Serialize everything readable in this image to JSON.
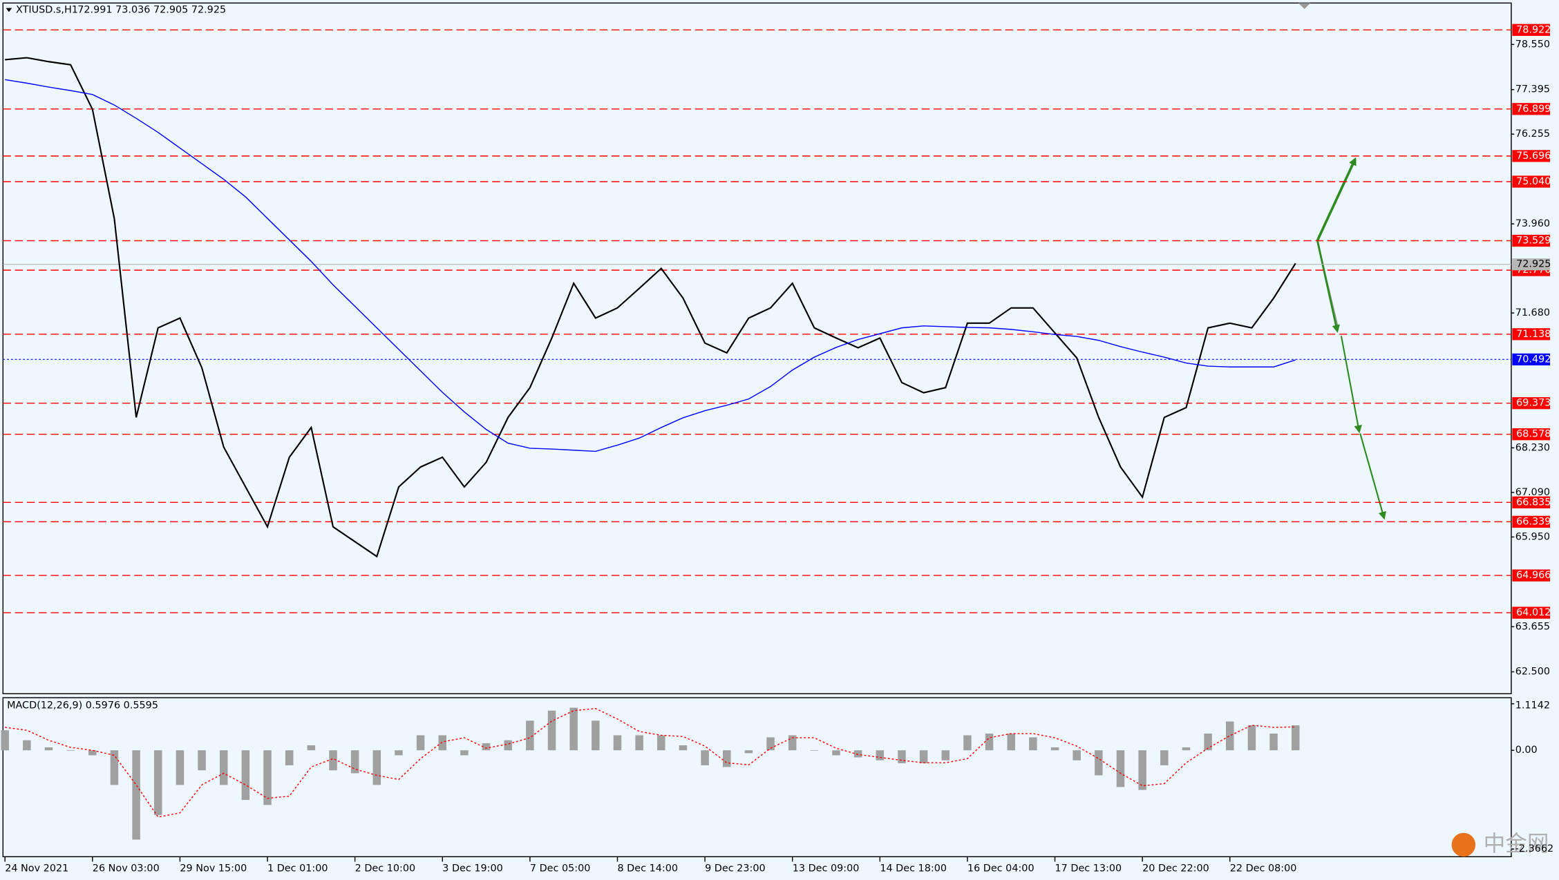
{
  "chart_data": [
    {
      "type": "line",
      "title": "XTIUSD.s,H1",
      "subtitle": "72.991 73.036 72.905 72.925",
      "categories": [
        "24 Nov 2021",
        null,
        null,
        null,
        "26 Nov 03:00",
        null,
        null,
        null,
        "29 Nov 15:00",
        null,
        null,
        null,
        "1 Dec 01:00",
        null,
        null,
        null,
        "2 Dec 10:00",
        null,
        null,
        null,
        "3 Dec 19:00",
        null,
        null,
        null,
        "7 Dec 05:00",
        null,
        null,
        null,
        "8 Dec 14:00",
        null,
        null,
        null,
        "9 Dec 23:00",
        null,
        null,
        null,
        "13 Dec 09:00",
        null,
        null,
        null,
        "14 Dec 18:00",
        null,
        null,
        null,
        "16 Dec 04:00",
        null,
        null,
        null,
        "17 Dec 13:00",
        null,
        null,
        null,
        "20 Dec 22:00",
        null,
        null,
        null,
        "22 Dec 08:00",
        null,
        null,
        null
      ],
      "series": [
        {
          "color": "#000000",
          "values": [
            78.16,
            78.21,
            78.11,
            78.03,
            76.89,
            74.09,
            69.01,
            71.3,
            71.55,
            70.28,
            68.25,
            67.23,
            66.21,
            67.99,
            68.75,
            66.21,
            65.83,
            65.45,
            67.23,
            67.74,
            67.99,
            67.23,
            67.86,
            69.01,
            69.77,
            71.04,
            72.44,
            71.55,
            71.81,
            72.31,
            72.82,
            72.06,
            70.91,
            70.66,
            71.55,
            71.81,
            72.44,
            71.3,
            71.04,
            70.79,
            71.04,
            69.9,
            69.64,
            69.77,
            71.42,
            71.42,
            71.81,
            71.81,
            71.17,
            70.53,
            69.01,
            67.74,
            66.97,
            69.01,
            69.26,
            71.3,
            71.42,
            71.3,
            72.06,
            72.95
          ]
        },
        {
          "color": "#0000ff",
          "values": [
            77.65,
            77.56,
            77.46,
            77.37,
            77.27,
            77.0,
            76.66,
            76.3,
            75.9,
            75.5,
            75.1,
            74.65,
            74.1,
            73.55,
            73.0,
            72.4,
            71.85,
            71.3,
            70.75,
            70.2,
            69.65,
            69.15,
            68.7,
            68.35,
            68.22,
            68.2,
            68.17,
            68.14,
            68.3,
            68.48,
            68.75,
            69.0,
            69.18,
            69.32,
            69.48,
            69.8,
            70.22,
            70.55,
            70.8,
            71.0,
            71.15,
            71.3,
            71.35,
            71.33,
            71.31,
            71.3,
            71.26,
            71.2,
            71.13,
            71.08,
            70.98,
            70.82,
            70.68,
            70.55,
            70.4,
            70.32,
            70.3,
            70.3,
            70.3,
            70.48
          ]
        }
      ],
      "ylim": [
        61.94,
        79.61
      ],
      "yticks": [
        {
          "value": 78.55,
          "label": "78.550"
        },
        77.395,
        76.255,
        {
          "value": 73.96,
          "label": "73.960"
        },
        {
          "value": 71.68,
          "label": "71.680"
        },
        {
          "value": 68.23,
          "label": "68.230"
        },
        {
          "value": 67.09,
          "label": "67.090"
        },
        {
          "value": 65.95,
          "label": "65.950"
        },
        63.655,
        {
          "value": 62.5,
          "label": "62.500"
        }
      ],
      "levels": {
        "color": "#ff0000",
        "values": [
          78.922,
          76.899,
          75.696,
          {
            "value": 75.04,
            "label": "75.040"
          },
          73.529,
          72.776,
          71.138,
          69.373,
          68.578,
          66.835,
          66.339,
          64.966,
          64.012
        ]
      },
      "price_tags": [
        {
          "value": 72.925,
          "color": "#b8b8b8",
          "text_color": "#000000"
        },
        {
          "value": 70.492,
          "color": "#0000ff",
          "text_color": "#ffffff"
        }
      ]
    },
    {
      "type": "bar",
      "title": "MACD(12,26,9) 0.5976 0.5595",
      "values": [
        0.48,
        0.24,
        0.07,
        0,
        -0.12,
        -0.83,
        -2.14,
        -1.55,
        -0.83,
        -0.48,
        -0.83,
        -1.19,
        -1.31,
        -0.36,
        0.12,
        -0.48,
        -0.55,
        -0.83,
        -0.12,
        0.36,
        0.36,
        -0.12,
        0.17,
        0.24,
        0.71,
        0.95,
        1.02,
        0.71,
        0.36,
        0.36,
        0.36,
        0.12,
        -0.36,
        -0.4,
        -0.07,
        0.31,
        0.36,
        0,
        -0.12,
        -0.17,
        -0.24,
        -0.31,
        -0.31,
        -0.24,
        0.36,
        0.4,
        0.4,
        0.31,
        0.07,
        -0.24,
        -0.6,
        -0.88,
        -0.95,
        -0.36,
        0.07,
        0.4,
        0.69,
        0.6,
        0.4,
        0.5976
      ],
      "color": "#a0a0a0",
      "signal": {
        "color": "#ff0000",
        "values": [
          0.55,
          0.48,
          0.24,
          0.07,
          0,
          -0.12,
          -0.83,
          -1.6,
          -1.5,
          -0.83,
          -0.55,
          -0.83,
          -1.15,
          -1.1,
          -0.4,
          -0.2,
          -0.45,
          -0.6,
          -0.7,
          -0.2,
          0.2,
          0.3,
          0.05,
          0.15,
          0.3,
          0.7,
          0.95,
          1.0,
          0.75,
          0.45,
          0.36,
          0.33,
          0.1,
          -0.3,
          -0.35,
          0.05,
          0.3,
          0.3,
          0.05,
          -0.1,
          -0.17,
          -0.24,
          -0.3,
          -0.3,
          -0.2,
          0.3,
          0.4,
          0.4,
          0.3,
          0.1,
          -0.2,
          -0.55,
          -0.85,
          -0.8,
          -0.3,
          0.05,
          0.35,
          0.6,
          0.55,
          0.5595
        ]
      },
      "ylim": [
        -2.55,
        1.26
      ],
      "yticks": [
        1.1142,
        {
          "value": 0,
          "label": "0.00"
        },
        -2.3662
      ]
    }
  ],
  "logo": "中金网"
}
